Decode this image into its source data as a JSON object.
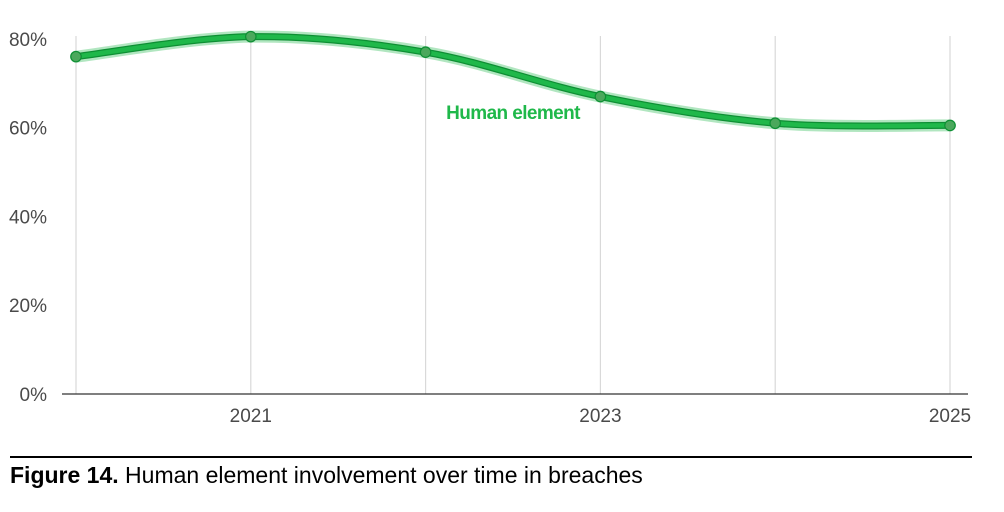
{
  "chart_data": {
    "type": "line",
    "x": [
      "2020",
      "2021",
      "2022",
      "2023",
      "2024",
      "2025"
    ],
    "x_tick_labels": [
      "2021",
      "2023",
      "2025"
    ],
    "y_tick_labels": [
      "0%",
      "20%",
      "40%",
      "60%",
      "80%"
    ],
    "y_ticks": [
      0,
      20,
      40,
      60,
      80
    ],
    "ylim": [
      0,
      82
    ],
    "y_unit": "%",
    "grid": "vertical",
    "series": [
      {
        "name": "Human element",
        "values": [
          76,
          80.5,
          77,
          67,
          61,
          60.5
        ],
        "color": "#1fb84a"
      }
    ]
  },
  "caption": {
    "number": "Figure 14.",
    "text": " Human element involvement over time in breaches"
  },
  "colors": {
    "line": "#1fb84a",
    "line_outline": "#0e8f34",
    "grid": "#d9d9d9",
    "axis": "#333333",
    "tick_text": "#4a4a4a"
  }
}
